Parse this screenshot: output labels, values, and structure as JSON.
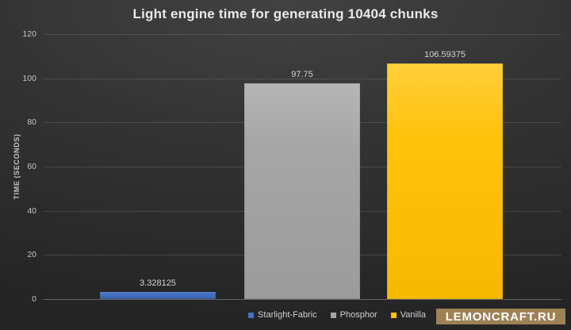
{
  "page": {
    "watermark": "LEMONCRAFT.RU"
  },
  "chart_data": {
    "type": "bar",
    "title": "Light engine time for generating 10404 chunks",
    "xlabel": "",
    "ylabel": "TIME (SECONDS)",
    "ylim": [
      0,
      120
    ],
    "yticks": [
      0,
      20,
      40,
      60,
      80,
      100,
      120
    ],
    "grid": true,
    "legend_position": "bottom",
    "categories": [
      "Starlight-Fabric",
      "Phosphor",
      "Vanilla"
    ],
    "series": [
      {
        "name": "Starlight-Fabric",
        "value": 3.328125,
        "data_label": "3.328125",
        "color": "#4472c4",
        "color_light": "#5b86d2",
        "color_dark": "#3a63ad"
      },
      {
        "name": "Phosphor",
        "value": 97.75,
        "data_label": "97.75",
        "color": "#a6a6a6",
        "color_light": "#b5b5b5",
        "color_dark": "#9b9b9b"
      },
      {
        "name": "Vanilla",
        "value": 106.59375,
        "data_label": "106.59375",
        "color": "#ffc30d",
        "color_light": "#ffd03a",
        "color_dark": "#f7b900"
      }
    ]
  },
  "colors": {
    "background_top": "#424242",
    "background_edge": "#252525",
    "title_text": "#e9e9e9",
    "axis_text": "#c3c3c3",
    "gridline": "rgba(255,255,255,0.12)",
    "watermark_bg": "#9c8254",
    "watermark_text": "#ffffff"
  }
}
